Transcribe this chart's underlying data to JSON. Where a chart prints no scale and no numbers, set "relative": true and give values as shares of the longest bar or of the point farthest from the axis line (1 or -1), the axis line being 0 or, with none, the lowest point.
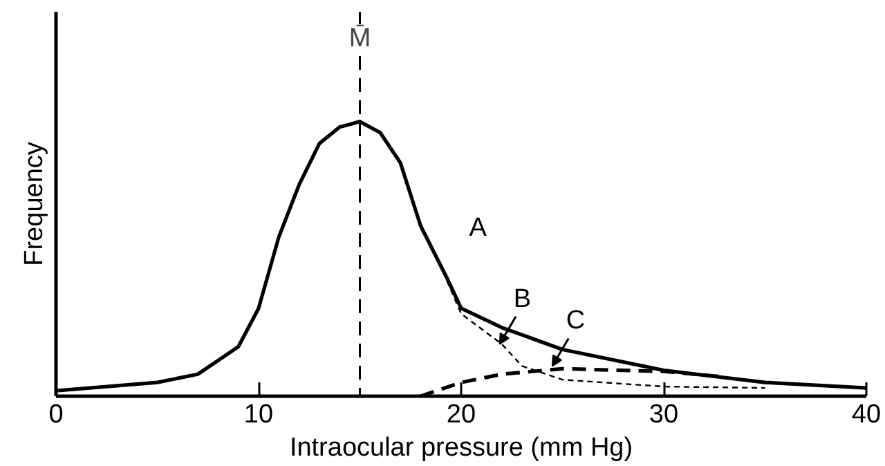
{
  "chart_data": {
    "type": "line",
    "relative": true,
    "xlabel": "Intraocular pressure (mm Hg)",
    "ylabel": "Frequency",
    "xlim": [
      0,
      40
    ],
    "xticks": [
      0,
      10,
      20,
      30,
      40
    ],
    "grid": false,
    "series": [
      {
        "color": "#000000",
        "line_style": "solid",
        "x": [
          0,
          5,
          7,
          9,
          10,
          11,
          12,
          13,
          14,
          15,
          16,
          17,
          18,
          19.3,
          20,
          22,
          25,
          30,
          35,
          40
        ],
        "values": [
          0.02,
          0.05,
          0.08,
          0.18,
          0.32,
          0.58,
          0.77,
          0.92,
          0.98,
          1.0,
          0.96,
          0.85,
          0.62,
          0.43,
          0.32,
          0.25,
          0.17,
          0.094,
          0.05,
          0.03
        ]
      },
      {
        "color": "#000000",
        "line_style": "dotted",
        "x": [
          19.3,
          20,
          22,
          23,
          25,
          30,
          35
        ],
        "values": [
          0.42,
          0.3,
          0.19,
          0.11,
          0.06,
          0.035,
          0.03
        ]
      },
      {
        "color": "#000000",
        "line_style": "dashed",
        "x": [
          18,
          20,
          22,
          25,
          30,
          33
        ],
        "values": [
          0,
          0.05,
          0.08,
          0.1,
          0.09,
          0.07
        ]
      }
    ],
    "ref_lines": [
      {
        "axis": "x",
        "value": 15,
        "label": "M̄",
        "line_style": "dashed",
        "color": "#000000"
      }
    ],
    "annotations": [
      {
        "text": "A",
        "x": 19.3,
        "y": 0.43
      },
      {
        "text": "B",
        "x": 21.9,
        "y": 0.19
      },
      {
        "text": "C",
        "x": 24.5,
        "y": 0.11
      }
    ]
  }
}
